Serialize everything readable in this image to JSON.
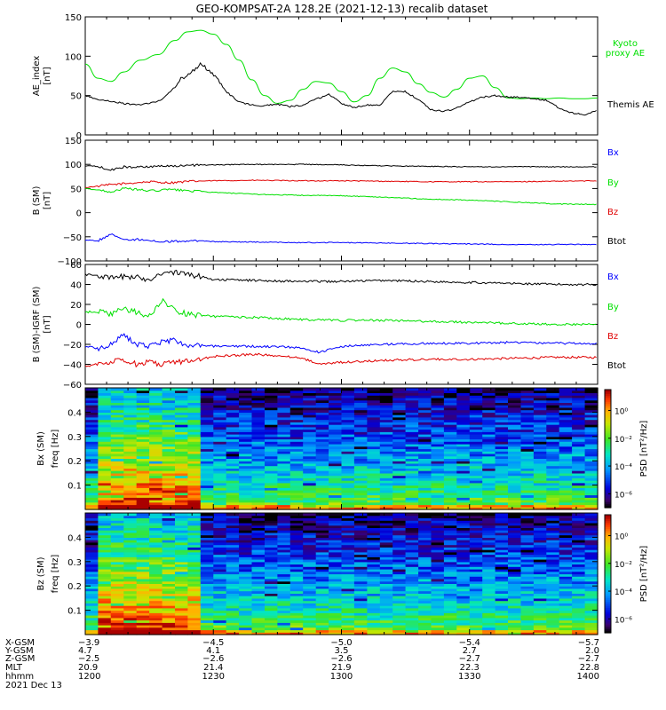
{
  "figure": {
    "title": "GEO-KOMPSAT-2A 128.2E (2021-12-13) recalib dataset"
  },
  "chart_data": [
    {
      "type": "line",
      "panel": "ae",
      "ylabel": [
        "AE_index",
        "[nT]"
      ],
      "ylim": [
        0,
        150
      ],
      "yticks": [
        0,
        50,
        100,
        150
      ],
      "xlim": [
        0,
        120
      ],
      "series": [
        {
          "name": "Kyoto proxy AE",
          "label_lines": [
            "Kyoto",
            "proxy AE"
          ],
          "color": "#00e000",
          "x": [
            0,
            3,
            6,
            9,
            13,
            17,
            21,
            24,
            27,
            30,
            33,
            36,
            39,
            42,
            45,
            48,
            51,
            54,
            57,
            60,
            63,
            66,
            69,
            72,
            75,
            78,
            81,
            84,
            87,
            90,
            93,
            96,
            99,
            102,
            105,
            108,
            111,
            114,
            117,
            120
          ],
          "values": [
            90,
            72,
            68,
            80,
            95,
            102,
            120,
            131,
            133,
            128,
            115,
            95,
            70,
            50,
            40,
            44,
            58,
            68,
            66,
            55,
            42,
            50,
            72,
            85,
            80,
            65,
            54,
            48,
            58,
            72,
            75,
            60,
            47,
            46,
            47,
            46,
            47,
            46,
            46,
            47
          ]
        },
        {
          "name": "Themis AE",
          "label_lines": [
            "Themis AE"
          ],
          "color": "#000000",
          "x": [
            0,
            3,
            6,
            9,
            12,
            15,
            18,
            21,
            22,
            24,
            26,
            27,
            29,
            31,
            33,
            36,
            39,
            42,
            45,
            48,
            51,
            54,
            57,
            60,
            63,
            66,
            69,
            72,
            75,
            78,
            81,
            84,
            87,
            90,
            93,
            96,
            99,
            102,
            105,
            108,
            111,
            114,
            117,
            120
          ],
          "values": [
            50,
            45,
            43,
            40,
            38,
            40,
            45,
            60,
            70,
            75,
            85,
            90,
            82,
            70,
            55,
            42,
            38,
            37,
            39,
            36,
            38,
            45,
            52,
            40,
            35,
            38,
            38,
            55,
            55,
            45,
            32,
            30,
            34,
            42,
            48,
            50,
            48,
            48,
            46,
            44,
            34,
            28,
            25,
            32
          ]
        }
      ]
    },
    {
      "type": "line",
      "panel": "b-sm",
      "ylabel": [
        "B (SM)",
        "[nT]"
      ],
      "ylim": [
        -100,
        150
      ],
      "yticks": [
        -100,
        -50,
        0,
        50,
        100,
        150
      ],
      "xlim": [
        0,
        120
      ],
      "legend": [
        {
          "name": "Bx",
          "color": "#0000ff"
        },
        {
          "name": "By",
          "color": "#00e000"
        },
        {
          "name": "Bz",
          "color": "#e00000"
        },
        {
          "name": "Btot",
          "color": "#000000"
        }
      ],
      "series": [
        {
          "name": "Btot",
          "color": "#000000",
          "x": [
            0,
            3,
            6,
            9,
            12,
            15,
            20,
            25,
            30,
            40,
            50,
            60,
            70,
            80,
            90,
            100,
            110,
            120
          ],
          "values": [
            97,
            96,
            88,
            95,
            94,
            95,
            97,
            98,
            99,
            100,
            100,
            99,
            97,
            96,
            95,
            95,
            95,
            95
          ]
        },
        {
          "name": "Bz",
          "color": "#e00000",
          "x": [
            0,
            3,
            6,
            9,
            12,
            15,
            20,
            25,
            30,
            40,
            50,
            60,
            70,
            80,
            90,
            100,
            110,
            120
          ],
          "values": [
            52,
            55,
            58,
            60,
            62,
            64,
            62,
            65,
            66,
            67,
            66,
            66,
            65,
            64,
            64,
            64,
            65,
            66
          ]
        },
        {
          "name": "By",
          "color": "#00e000",
          "x": [
            0,
            3,
            6,
            9,
            12,
            15,
            20,
            25,
            30,
            40,
            50,
            60,
            70,
            80,
            90,
            100,
            110,
            120
          ],
          "values": [
            50,
            47,
            43,
            50,
            48,
            45,
            48,
            45,
            42,
            38,
            36,
            35,
            32,
            28,
            26,
            22,
            18,
            17
          ]
        },
        {
          "name": "Bx",
          "color": "#0000ff",
          "x": [
            0,
            3,
            6,
            9,
            12,
            15,
            20,
            25,
            30,
            40,
            50,
            60,
            70,
            80,
            90,
            100,
            110,
            120
          ],
          "values": [
            -57,
            -58,
            -45,
            -57,
            -55,
            -59,
            -60,
            -58,
            -60,
            -61,
            -62,
            -62,
            -63,
            -64,
            -65,
            -66,
            -66,
            -66
          ]
        }
      ]
    },
    {
      "type": "line",
      "panel": "b-sm-igrf",
      "ylabel": [
        "B (SM)-IGRF (SM)",
        "[nT]"
      ],
      "ylim": [
        -60,
        60
      ],
      "yticks": [
        -60,
        -40,
        -20,
        0,
        20,
        40,
        60
      ],
      "xlim": [
        0,
        120
      ],
      "legend": [
        {
          "name": "Bx",
          "color": "#0000ff"
        },
        {
          "name": "By",
          "color": "#00e000"
        },
        {
          "name": "Bz",
          "color": "#e00000"
        },
        {
          "name": "Btot",
          "color": "#000000"
        }
      ],
      "series": [
        {
          "name": "Btot",
          "color": "#000000",
          "x": [
            0,
            3,
            6,
            9,
            12,
            15,
            18,
            21,
            24,
            27,
            30,
            40,
            50,
            60,
            70,
            80,
            90,
            100,
            110,
            120
          ],
          "values": [
            50,
            49,
            46,
            48,
            47,
            45,
            52,
            52,
            50,
            48,
            45,
            44,
            43,
            43,
            44,
            43,
            42,
            41,
            40,
            40
          ]
        },
        {
          "name": "By",
          "color": "#00e000",
          "x": [
            0,
            3,
            6,
            9,
            12,
            15,
            18,
            21,
            24,
            27,
            30,
            40,
            50,
            60,
            70,
            80,
            90,
            100,
            110,
            120
          ],
          "values": [
            12,
            13,
            10,
            16,
            12,
            8,
            24,
            14,
            10,
            9,
            8,
            7,
            5,
            4,
            4,
            3,
            2,
            1,
            0,
            0
          ]
        },
        {
          "name": "Bx",
          "color": "#0000ff",
          "x": [
            0,
            3,
            6,
            9,
            12,
            15,
            18,
            21,
            24,
            27,
            30,
            40,
            50,
            55,
            60,
            70,
            80,
            90,
            100,
            110,
            120
          ],
          "values": [
            -22,
            -24,
            -20,
            -10,
            -20,
            -22,
            -18,
            -15,
            -22,
            -21,
            -22,
            -22,
            -23,
            -28,
            -22,
            -20,
            -19,
            -19,
            -18,
            -19,
            -19
          ]
        },
        {
          "name": "Bz",
          "color": "#e00000",
          "x": [
            0,
            3,
            6,
            9,
            12,
            15,
            18,
            21,
            24,
            27,
            30,
            40,
            50,
            55,
            60,
            70,
            80,
            90,
            100,
            110,
            120
          ],
          "values": [
            -42,
            -40,
            -38,
            -35,
            -40,
            -38,
            -40,
            -38,
            -37,
            -35,
            -32,
            -30,
            -33,
            -40,
            -38,
            -36,
            -35,
            -35,
            -34,
            -33,
            -33
          ]
        }
      ]
    },
    {
      "type": "heatmap",
      "panel": "bx-spec",
      "ylabel": [
        "Bx (SM)",
        "freq [Hz]"
      ],
      "ylim": [
        0,
        0.5
      ],
      "yticks": [
        0.1,
        0.2,
        0.3,
        0.4
      ],
      "colorbar_label": "PSD [nT²/Hz]",
      "colorbar_ticks": [
        "10⁰",
        "10⁻²",
        "10⁻⁴",
        "10⁻⁶"
      ],
      "colorbar_tick_values": [
        0,
        -2,
        -4,
        -6
      ],
      "colorbar_range": [
        -7,
        1.5
      ],
      "freq_bins": 50,
      "time_bins": 40,
      "active_interval": [
        3,
        27
      ]
    },
    {
      "type": "heatmap",
      "panel": "bz-spec",
      "ylabel": [
        "Bz (SM)",
        "freq [Hz]"
      ],
      "ylim": [
        0,
        0.5
      ],
      "yticks": [
        0.1,
        0.2,
        0.3,
        0.4
      ],
      "colorbar_label": "PSD [nT²/Hz]",
      "colorbar_ticks": [
        "10⁰",
        "10⁻²",
        "10⁻⁴",
        "10⁻⁶"
      ],
      "colorbar_tick_values": [
        0,
        -2,
        -4,
        -6
      ],
      "colorbar_range": [
        -7,
        1.5
      ],
      "freq_bins": 50,
      "time_bins": 40,
      "active_interval": [
        3,
        27
      ]
    }
  ],
  "orbit_table": {
    "rows": [
      {
        "label": "X-GSM",
        "values": [
          "-3.9",
          "-4.5",
          "-5.0",
          "-5.4",
          "-5.7"
        ]
      },
      {
        "label": "Y-GSM",
        "values": [
          "4.7",
          "4.1",
          "3.5",
          "2.7",
          "2.0"
        ]
      },
      {
        "label": "Z-GSM",
        "values": [
          "-2.5",
          "-2.6",
          "-2.6",
          "-2.7",
          "-2.7"
        ]
      },
      {
        "label": "MLT",
        "values": [
          "20.9",
          "21.4",
          "21.9",
          "22.3",
          "22.8"
        ]
      },
      {
        "label": "hhmm",
        "values": [
          "1200",
          "1230",
          "1300",
          "1330",
          "1400"
        ]
      }
    ],
    "date": "2021 Dec 13"
  }
}
